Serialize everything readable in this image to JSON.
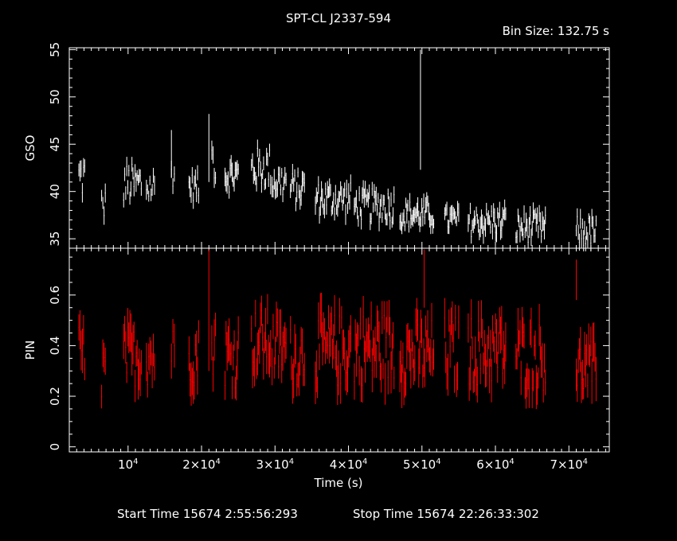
{
  "chart_data": {
    "title": "SPT-CL J2337-594",
    "bin_size_text": "Bin Size: 132.75 s",
    "xlabel": "Time (s)",
    "x_tick_labels": [
      "10^4",
      "2×10^4",
      "3×10^4",
      "4×10^4",
      "5×10^4",
      "6×10^4",
      "7×10^4"
    ],
    "xlim": [
      2000,
      75500
    ],
    "footer": {
      "start": "Start Time 15674  2:55:56:293",
      "stop": "Stop Time 15674 22:26:33:302"
    },
    "panels": [
      {
        "name": "GSO",
        "type": "scatter",
        "ylabel": "GSO",
        "ylim": [
          34,
          55.2
        ],
        "y_ticks": [
          35,
          40,
          45,
          50,
          55
        ],
        "color": "#ffffff",
        "segments": [
          {
            "t0": 3300,
            "t1": 4100,
            "base": 41.5,
            "amp": 2.5
          },
          {
            "t0": 6400,
            "t1": 6900,
            "base": 38.5,
            "amp": 1.8
          },
          {
            "t0": 9400,
            "t1": 11800,
            "base": 40.8,
            "amp": 2.2
          },
          {
            "t0": 12500,
            "t1": 13600,
            "base": 40.5,
            "amp": 2.0
          },
          {
            "t0": 15900,
            "t1": 16300,
            "base": 42.0,
            "amp": 1.5
          },
          {
            "t0": 18300,
            "t1": 19600,
            "base": 40.5,
            "amp": 1.5
          },
          {
            "t0": 21400,
            "t1": 21900,
            "base": 43.5,
            "amp": 2.5
          },
          {
            "t0": 23200,
            "t1": 25000,
            "base": 41.7,
            "amp": 1.8
          },
          {
            "t0": 26800,
            "t1": 29400,
            "base": 42.5,
            "amp": 2.2
          },
          {
            "t0": 29600,
            "t1": 31500,
            "base": 41.0,
            "amp": 1.8
          },
          {
            "t0": 32100,
            "t1": 34000,
            "base": 40.3,
            "amp": 1.8
          },
          {
            "t0": 35500,
            "t1": 40300,
            "base": 39.2,
            "amp": 1.8
          },
          {
            "t0": 40800,
            "t1": 46200,
            "base": 38.5,
            "amp": 1.8
          },
          {
            "t0": 47000,
            "t1": 51600,
            "base": 37.6,
            "amp": 1.5
          },
          {
            "t0": 53100,
            "t1": 55000,
            "base": 37.0,
            "amp": 1.3
          },
          {
            "t0": 56300,
            "t1": 61400,
            "base": 36.8,
            "amp": 1.6
          },
          {
            "t0": 62800,
            "t1": 66800,
            "base": 36.2,
            "amp": 1.6
          },
          {
            "t0": 71000,
            "t1": 73700,
            "base": 35.8,
            "amp": 1.6
          }
        ],
        "spikes": [
          {
            "t": 15900,
            "low": 41.5,
            "high": 46.5
          },
          {
            "t": 21000,
            "low": 41.0,
            "high": 48.2
          },
          {
            "t": 49800,
            "low": 42.3,
            "high": 55.0
          }
        ]
      },
      {
        "name": "PIN",
        "type": "scatter",
        "ylabel": "PIN",
        "ylim": [
          -0.02,
          0.785
        ],
        "y_ticks": [
          0,
          0.2,
          0.4,
          0.6
        ],
        "color": "#ff0000",
        "segments": [
          {
            "t0": 3300,
            "t1": 4100,
            "base": 0.37,
            "amp": 0.12
          },
          {
            "t0": 6400,
            "t1": 6900,
            "base": 0.3,
            "amp": 0.12
          },
          {
            "t0": 9400,
            "t1": 11800,
            "base": 0.36,
            "amp": 0.12
          },
          {
            "t0": 12500,
            "t1": 13600,
            "base": 0.36,
            "amp": 0.12
          },
          {
            "t0": 15900,
            "t1": 16300,
            "base": 0.38,
            "amp": 0.1
          },
          {
            "t0": 18300,
            "t1": 19600,
            "base": 0.36,
            "amp": 0.12
          },
          {
            "t0": 21400,
            "t1": 21900,
            "base": 0.42,
            "amp": 0.14
          },
          {
            "t0": 23200,
            "t1": 25000,
            "base": 0.36,
            "amp": 0.13
          },
          {
            "t0": 26800,
            "t1": 29400,
            "base": 0.42,
            "amp": 0.13
          },
          {
            "t0": 29600,
            "t1": 31500,
            "base": 0.39,
            "amp": 0.12
          },
          {
            "t0": 32100,
            "t1": 34000,
            "base": 0.36,
            "amp": 0.12
          },
          {
            "t0": 35500,
            "t1": 40300,
            "base": 0.38,
            "amp": 0.15
          },
          {
            "t0": 40800,
            "t1": 46200,
            "base": 0.39,
            "amp": 0.15
          },
          {
            "t0": 47000,
            "t1": 51600,
            "base": 0.37,
            "amp": 0.14
          },
          {
            "t0": 53100,
            "t1": 55000,
            "base": 0.38,
            "amp": 0.14
          },
          {
            "t0": 56300,
            "t1": 61400,
            "base": 0.38,
            "amp": 0.14
          },
          {
            "t0": 62800,
            "t1": 66800,
            "base": 0.36,
            "amp": 0.14
          },
          {
            "t0": 71000,
            "t1": 73700,
            "base": 0.31,
            "amp": 0.11
          }
        ],
        "spikes": [
          {
            "t": 21000,
            "low": 0.3,
            "high": 0.78
          },
          {
            "t": 50300,
            "low": 0.55,
            "high": 0.78
          },
          {
            "t": 71000,
            "low": 0.58,
            "high": 0.74
          }
        ]
      }
    ]
  }
}
